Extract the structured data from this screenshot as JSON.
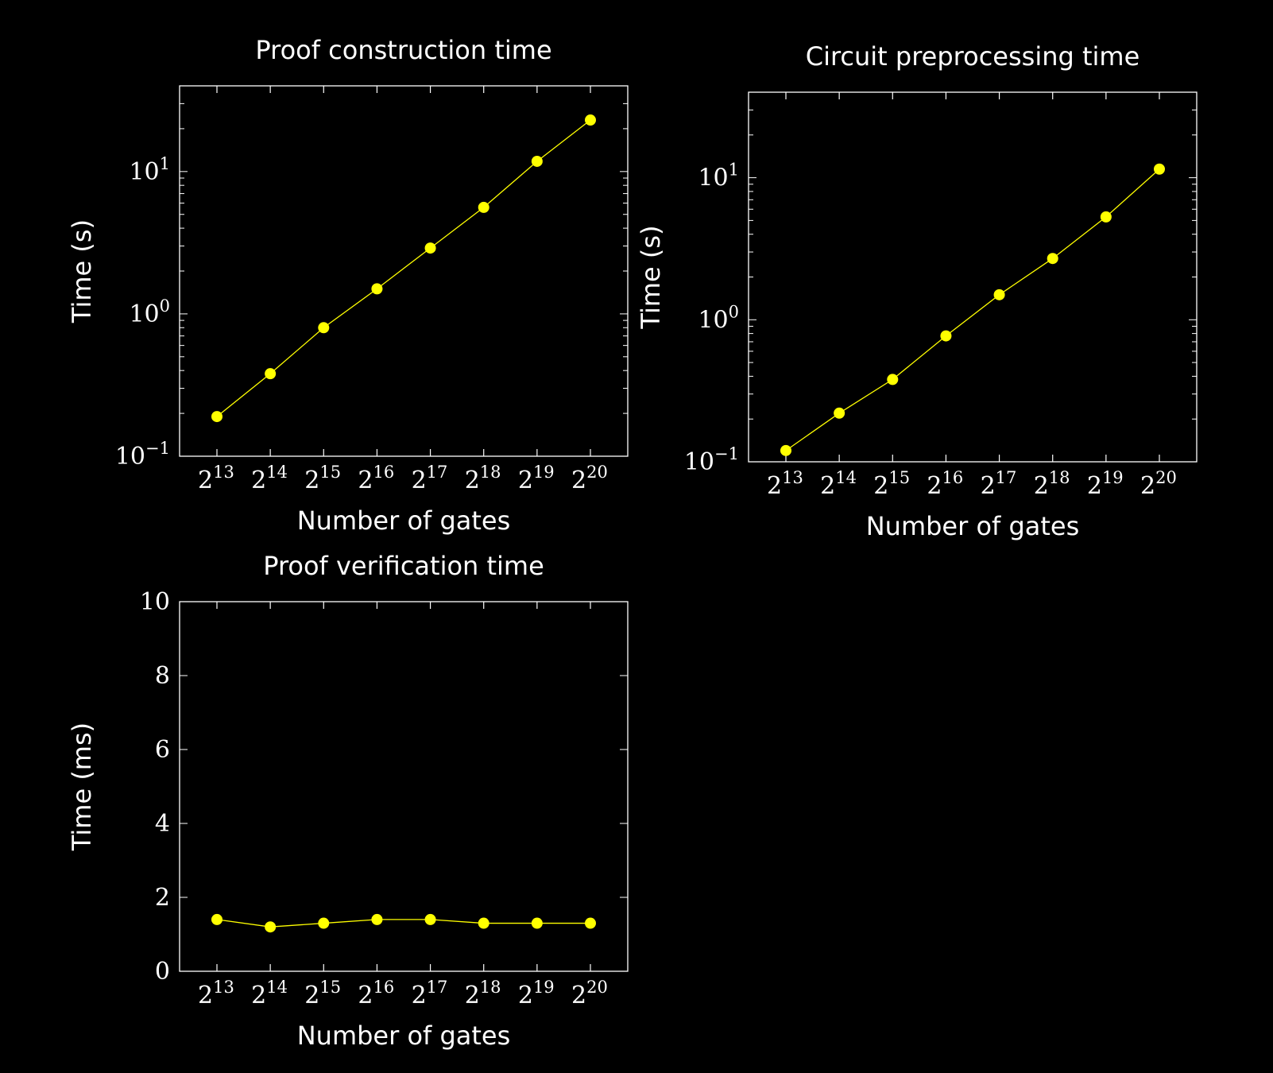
{
  "colors": {
    "background": "#000000",
    "axes": "#ffffff",
    "series": "#ffff00"
  },
  "chart_data": [
    {
      "type": "line",
      "title": "Proof construction time",
      "xlabel": "Number of gates",
      "ylabel": "Time (s)",
      "yscale": "log",
      "ylim": [
        0.1,
        40
      ],
      "ytick_base": "10",
      "yticks": [
        {
          "value": 0.1,
          "exp": "−1"
        },
        {
          "value": 1,
          "exp": "0"
        },
        {
          "value": 10,
          "exp": "1"
        }
      ],
      "categories": [
        "13",
        "14",
        "15",
        "16",
        "17",
        "18",
        "19",
        "20"
      ],
      "xtick_base": "2",
      "series": [
        {
          "name": "Proof construction",
          "values": [
            0.19,
            0.38,
            0.8,
            1.5,
            2.9,
            5.6,
            11.8,
            23
          ]
        }
      ]
    },
    {
      "type": "line",
      "title": "Circuit preprocessing time",
      "xlabel": "Number of gates",
      "ylabel": "Time (s)",
      "yscale": "log",
      "ylim": [
        0.1,
        40
      ],
      "ytick_base": "10",
      "yticks": [
        {
          "value": 0.1,
          "exp": "−1"
        },
        {
          "value": 1,
          "exp": "0"
        },
        {
          "value": 10,
          "exp": "1"
        }
      ],
      "categories": [
        "13",
        "14",
        "15",
        "16",
        "17",
        "18",
        "19",
        "20"
      ],
      "xtick_base": "2",
      "series": [
        {
          "name": "Circuit preprocessing",
          "values": [
            0.12,
            0.22,
            0.38,
            0.77,
            1.5,
            2.7,
            5.3,
            11.5
          ]
        }
      ]
    },
    {
      "type": "line",
      "title": "Proof verification time",
      "xlabel": "Number of gates",
      "ylabel": "Time (ms)",
      "yscale": "linear",
      "ylim": [
        0,
        10
      ],
      "yticks": [
        {
          "value": 0,
          "label": "0"
        },
        {
          "value": 2,
          "label": "2"
        },
        {
          "value": 4,
          "label": "4"
        },
        {
          "value": 6,
          "label": "6"
        },
        {
          "value": 8,
          "label": "8"
        },
        {
          "value": 10,
          "label": "10"
        }
      ],
      "categories": [
        "13",
        "14",
        "15",
        "16",
        "17",
        "18",
        "19",
        "20"
      ],
      "xtick_base": "2",
      "series": [
        {
          "name": "Proof verification",
          "values": [
            1.4,
            1.2,
            1.3,
            1.4,
            1.4,
            1.3,
            1.3,
            1.3
          ]
        }
      ]
    }
  ]
}
